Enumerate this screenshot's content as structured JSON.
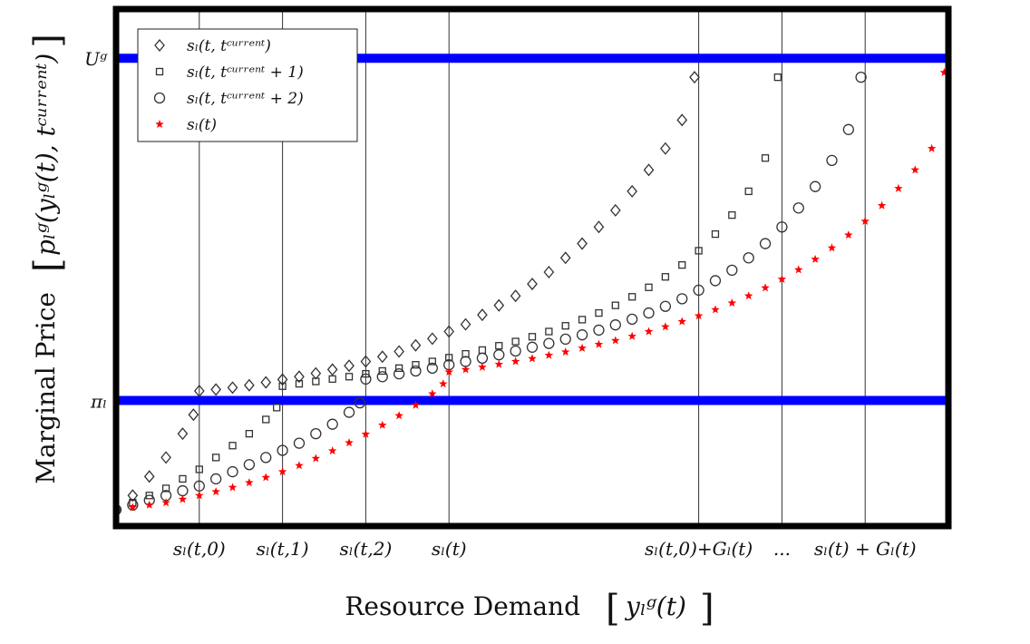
{
  "chart_data": {
    "type": "scatter",
    "xlabel": "Resource Demand",
    "xlabel_math": "y_g^l(t)",
    "ylabel": "Marginal Price",
    "ylabel_math": "p_g^l(y_g^l(t), t_current)",
    "grid": false,
    "legend_position": "top-left",
    "xlim": [
      0,
      100
    ],
    "ylim": [
      0,
      100
    ],
    "x_ticks": [
      {
        "x": 10,
        "label": "s_l(t,0)"
      },
      {
        "x": 20,
        "label": "s_l(t,1)"
      },
      {
        "x": 30,
        "label": "s_l(t,2)"
      },
      {
        "x": 40,
        "label": "s_l(t)"
      },
      {
        "x": 70,
        "label": "s_l(t,0)+G_l(t)"
      },
      {
        "x": 80,
        "label": "..."
      },
      {
        "x": 90,
        "label": "s_l(t) + G_l(t)"
      }
    ],
    "hlines": [
      {
        "y": 95,
        "label": "U_g",
        "color": "#0000ff"
      },
      {
        "y": 23,
        "label": "π_l",
        "color": "#0000ff"
      }
    ],
    "series": [
      {
        "name": "s_l(t, t_current)",
        "marker": "diamond",
        "color": "#333333",
        "x": [
          0,
          2,
          4,
          6,
          8,
          9.3,
          10,
          12,
          14,
          16,
          18,
          20,
          22,
          24,
          26,
          28,
          30,
          32,
          34,
          36,
          38,
          40,
          42,
          44,
          46,
          48,
          50,
          52,
          54,
          56,
          58,
          60,
          62,
          64,
          66,
          68,
          69.5
        ],
        "y": [
          0,
          3,
          7,
          11,
          16,
          20,
          25,
          25.3,
          25.7,
          26.2,
          26.8,
          27.4,
          28,
          28.7,
          29.5,
          30.3,
          31.2,
          32.2,
          33.3,
          34.6,
          36,
          37.5,
          39,
          41,
          43,
          45,
          47.5,
          50,
          53,
          56,
          59.5,
          63,
          67,
          71.5,
          76,
          82,
          91
        ]
      },
      {
        "name": "s_l(t, t_current + 1)",
        "marker": "square",
        "color": "#333333",
        "x": [
          0,
          2,
          4,
          6,
          8,
          10,
          12,
          14,
          16,
          18,
          19.3,
          20,
          22,
          24,
          26,
          28,
          30,
          32,
          34,
          36,
          38,
          40,
          42,
          44,
          46,
          48,
          50,
          52,
          54,
          56,
          58,
          60,
          62,
          64,
          66,
          68,
          70,
          72,
          74,
          76,
          78,
          79.5
        ],
        "y": [
          0,
          1.5,
          3,
          4.5,
          6.5,
          8.5,
          11,
          13.5,
          16,
          19,
          21.5,
          26,
          26.5,
          27,
          27.5,
          28,
          28.6,
          29.2,
          29.8,
          30.5,
          31.2,
          32,
          32.8,
          33.6,
          34.5,
          35.4,
          36.4,
          37.5,
          38.7,
          40,
          41.4,
          43,
          44.8,
          46.8,
          49,
          51.5,
          54.5,
          58,
          62,
          67,
          74,
          91
        ]
      },
      {
        "name": "s_l(t, t_current + 2)",
        "marker": "circle",
        "color": "#333333",
        "x": [
          0,
          2,
          4,
          6,
          8,
          10,
          12,
          14,
          16,
          18,
          20,
          22,
          24,
          26,
          28,
          29.3,
          30,
          32,
          34,
          36,
          38,
          40,
          42,
          44,
          46,
          48,
          50,
          52,
          54,
          56,
          58,
          60,
          62,
          64,
          66,
          68,
          70,
          72,
          74,
          76,
          78,
          80,
          82,
          84,
          86,
          88,
          89.5
        ],
        "y": [
          0,
          1,
          2,
          3,
          4,
          5,
          6.5,
          8,
          9.5,
          11,
          12.5,
          14,
          16,
          18,
          20.5,
          22.5,
          27.5,
          28,
          28.6,
          29.2,
          29.8,
          30.5,
          31.2,
          31.9,
          32.6,
          33.4,
          34.2,
          35,
          35.9,
          36.8,
          37.8,
          38.9,
          40.1,
          41.4,
          42.8,
          44.4,
          46.2,
          48.2,
          50.4,
          53,
          56,
          59.5,
          63.5,
          68,
          73.5,
          80,
          91
        ]
      },
      {
        "name": "s_l(t)",
        "marker": "star",
        "color": "#ff0000",
        "x": [
          0,
          2,
          4,
          6,
          8,
          10,
          12,
          14,
          16,
          18,
          20,
          22,
          24,
          26,
          28,
          30,
          32,
          34,
          36,
          38,
          39.3,
          40,
          42,
          44,
          46,
          48,
          50,
          52,
          54,
          56,
          58,
          60,
          62,
          64,
          66,
          68,
          70,
          72,
          74,
          76,
          78,
          80,
          82,
          84,
          86,
          88,
          90,
          92,
          94,
          96,
          98,
          99.5
        ],
        "y": [
          0,
          0.5,
          1,
          1.5,
          2.2,
          3,
          3.8,
          4.7,
          5.7,
          6.8,
          8,
          9.3,
          10.8,
          12.4,
          14.1,
          15.9,
          17.8,
          19.8,
          22,
          24.4,
          26.5,
          29,
          29.5,
          30,
          30.6,
          31.2,
          31.8,
          32.5,
          33.2,
          34,
          34.8,
          35.6,
          36.5,
          37.5,
          38.5,
          39.6,
          40.8,
          42.1,
          43.5,
          45,
          46.7,
          48.5,
          50.5,
          52.7,
          55.1,
          57.8,
          60.7,
          64,
          67.6,
          71.5,
          76,
          92
        ]
      }
    ]
  }
}
